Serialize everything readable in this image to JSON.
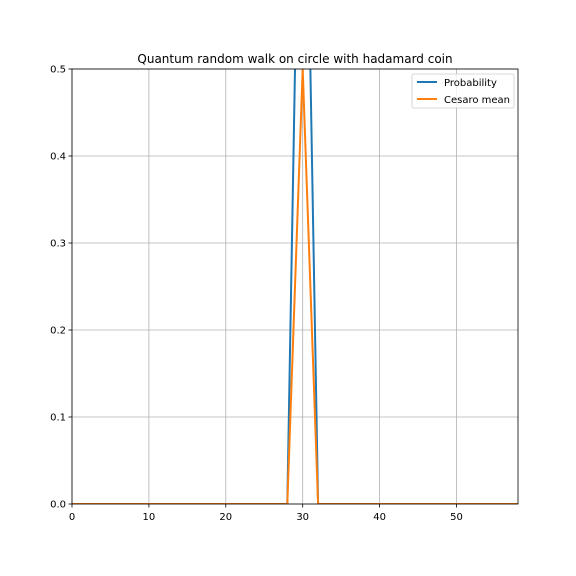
{
  "chart_data": {
    "type": "line",
    "title": "Quantum random walk on circle with hadamard coin",
    "xlabel": "",
    "ylabel": "",
    "xlim": [
      0,
      58
    ],
    "ylim": [
      0,
      0.5
    ],
    "xticks": [
      0,
      10,
      20,
      30,
      40,
      50
    ],
    "yticks": [
      0.0,
      0.1,
      0.2,
      0.3,
      0.4,
      0.5
    ],
    "xtick_labels": [
      "0",
      "10",
      "20",
      "30",
      "40",
      "50"
    ],
    "ytick_labels": [
      "0.0",
      "0.1",
      "0.2",
      "0.3",
      "0.4",
      "0.5"
    ],
    "grid": true,
    "legend_position": "top-right",
    "series": [
      {
        "name": "Probability",
        "color": "#1f77b4",
        "x": [
          0,
          28,
          29,
          30,
          31,
          32,
          58
        ],
        "y": [
          0,
          0,
          0.5,
          1.0,
          0.5,
          0,
          0
        ]
      },
      {
        "name": "Cesaro mean",
        "color": "#ff7f0e",
        "x": [
          0,
          28,
          29,
          30,
          31,
          32,
          58
        ],
        "y": [
          0,
          0,
          0.25,
          0.5,
          0.25,
          0,
          0
        ]
      }
    ]
  }
}
